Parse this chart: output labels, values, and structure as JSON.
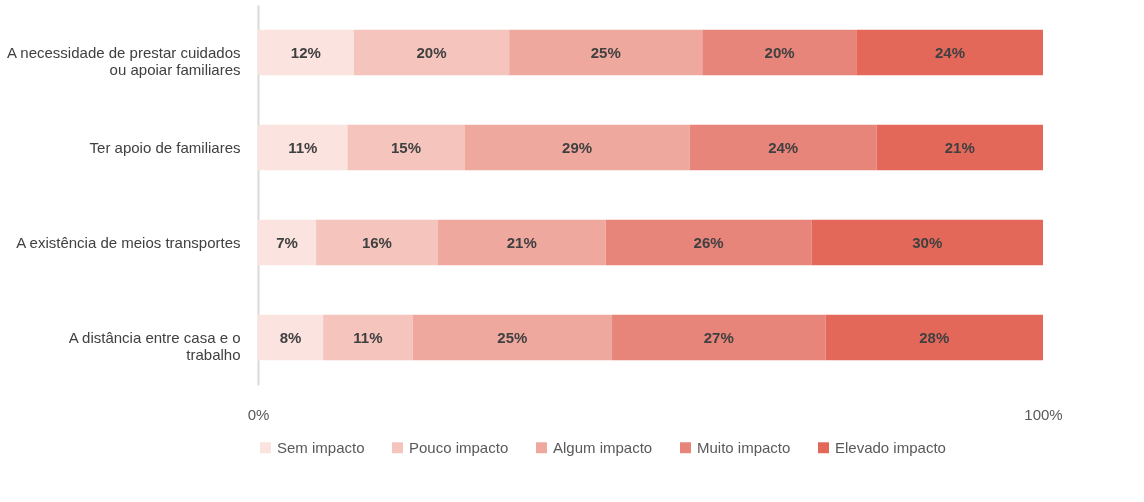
{
  "chart_data": {
    "type": "bar",
    "orientation": "horizontal",
    "stacked": true,
    "categories": [
      "A necessidade de prestar cuidados ou apoiar familiares",
      "Ter apoio de familiares",
      "A existência de meios transportes",
      "A distância entre casa e o trabalho"
    ],
    "series": [
      {
        "name": "Sem impacto",
        "color": "#fbe3e0",
        "values": [
          0.122,
          0.114,
          0.074,
          0.083
        ],
        "value_labels": [
          "12%",
          "11%",
          "7%",
          "8%"
        ]
      },
      {
        "name": "Pouco impacto",
        "color": "#f4c4bd",
        "values": [
          0.198,
          0.149,
          0.155,
          0.114
        ],
        "value_labels": [
          "20%",
          "15%",
          "16%",
          "11%"
        ]
      },
      {
        "name": "Algum impacto",
        "color": "#eea89e",
        "values": [
          0.246,
          0.287,
          0.214,
          0.254
        ],
        "value_labels": [
          "25%",
          "29%",
          "21%",
          "25%"
        ]
      },
      {
        "name": "Muito impacto",
        "color": "#e8857a",
        "values": [
          0.197,
          0.238,
          0.262,
          0.272
        ],
        "value_labels": [
          "20%",
          "24%",
          "26%",
          "27%"
        ]
      },
      {
        "name": "Elevado impacto",
        "color": "#e4685a",
        "values": [
          0.237,
          0.212,
          0.295,
          0.277
        ],
        "value_labels": [
          "24%",
          "21%",
          "30%",
          "28%"
        ]
      }
    ],
    "xlim": [
      0,
      1
    ],
    "xticks": [
      {
        "value": 0,
        "label": "0%"
      },
      {
        "value": 1,
        "label": "100%"
      }
    ],
    "grid": false,
    "legend": "bottom"
  }
}
